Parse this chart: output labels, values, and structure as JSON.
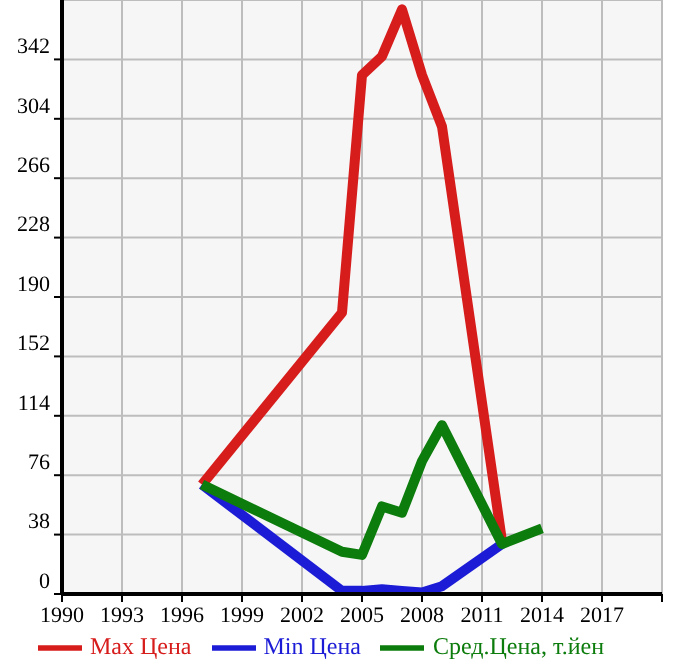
{
  "chart_data": {
    "type": "line",
    "series": [
      {
        "name": "Max Цена",
        "color": "#d71c1c",
        "x": [
          1997,
          2004,
          2005,
          2006,
          2007,
          2008,
          2009,
          2012
        ],
        "values": [
          70,
          180,
          332,
          344,
          374,
          332,
          299,
          34
        ]
      },
      {
        "name": "Min Цена",
        "color": "#1c1cd7",
        "x": [
          1997,
          2004,
          2005,
          2006,
          2007,
          2008,
          2009,
          2012
        ],
        "values": [
          70,
          2,
          2,
          3,
          2,
          1,
          5,
          32
        ]
      },
      {
        "name": "Сред.Цена, т.йен",
        "color": "#0c7c0c",
        "x": [
          1997,
          2004,
          2005,
          2006,
          2007,
          2008,
          2009,
          2012,
          2014
        ],
        "values": [
          70,
          27,
          25,
          56,
          52,
          85,
          108,
          32,
          42
        ]
      }
    ],
    "xlim": [
      1990,
      2020
    ],
    "xticks": [
      1990,
      1993,
      1996,
      1999,
      2002,
      2005,
      2008,
      2011,
      2014,
      2017,
      {
        "value": 2020,
        "label": null
      }
    ],
    "ylim": [
      0,
      380
    ],
    "yticks": [
      0,
      38,
      76,
      114,
      152,
      190,
      228,
      266,
      304,
      342
    ],
    "grid": true,
    "legend": "bottom",
    "marker": "none",
    "line_style": "solid"
  }
}
